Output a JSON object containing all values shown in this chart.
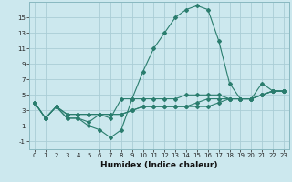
{
  "xlabel": "Humidex (Indice chaleur)",
  "ylabel": "",
  "background_color": "#cce8ee",
  "grid_color": "#aacdd6",
  "line_color": "#2a7d6e",
  "x_values": [
    0,
    1,
    2,
    3,
    4,
    5,
    6,
    7,
    8,
    9,
    10,
    11,
    12,
    13,
    14,
    15,
    16,
    17,
    18,
    19,
    20,
    21,
    22,
    23
  ],
  "line1": [
    4.0,
    2.0,
    3.5,
    2.0,
    2.0,
    1.0,
    0.5,
    -0.5,
    0.5,
    4.5,
    8.0,
    11.0,
    13.0,
    15.0,
    16.0,
    16.5,
    16.0,
    12.0,
    6.5,
    4.5,
    4.5,
    6.5,
    5.5,
    5.5
  ],
  "line2": [
    4.0,
    2.0,
    3.5,
    2.0,
    2.0,
    1.5,
    2.5,
    2.0,
    4.5,
    4.5,
    4.5,
    4.5,
    4.5,
    4.5,
    5.0,
    5.0,
    5.0,
    5.0,
    4.5,
    4.5,
    4.5,
    5.0,
    5.5,
    5.5
  ],
  "line3": [
    4.0,
    2.0,
    3.5,
    2.5,
    2.5,
    2.5,
    2.5,
    2.5,
    2.5,
    3.0,
    3.5,
    3.5,
    3.5,
    3.5,
    3.5,
    4.0,
    4.5,
    4.5,
    4.5,
    4.5,
    4.5,
    5.0,
    5.5,
    5.5
  ],
  "line4": [
    4.0,
    2.0,
    3.5,
    2.5,
    2.5,
    2.5,
    2.5,
    2.5,
    2.5,
    3.0,
    3.5,
    3.5,
    3.5,
    3.5,
    3.5,
    3.5,
    3.5,
    4.0,
    4.5,
    4.5,
    4.5,
    5.0,
    5.5,
    5.5
  ],
  "xlim": [
    -0.5,
    23.5
  ],
  "ylim": [
    -2,
    17
  ],
  "yticks": [
    -1,
    1,
    3,
    5,
    7,
    9,
    11,
    13,
    15
  ],
  "xticks": [
    0,
    1,
    2,
    3,
    4,
    5,
    6,
    7,
    8,
    9,
    10,
    11,
    12,
    13,
    14,
    15,
    16,
    17,
    18,
    19,
    20,
    21,
    22,
    23
  ],
  "tick_fontsize": 5.0,
  "xlabel_fontsize": 6.5,
  "marker_size": 2.0,
  "line_width": 0.8
}
